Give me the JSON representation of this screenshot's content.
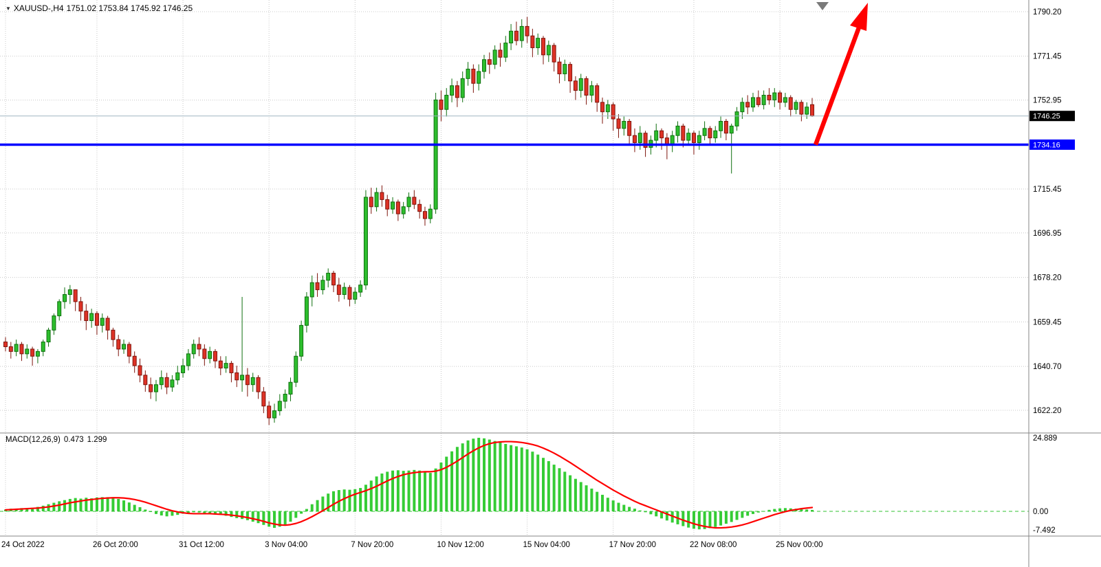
{
  "meta": {
    "bg": "#ffffff",
    "grid_color": "#c8c8c8",
    "separator_color": "#848484",
    "up_fill": "#2DBE2D",
    "up_stroke": "#0E6F0E",
    "down_fill": "#DE3226",
    "down_stroke": "#7E150C",
    "blue_line_color": "#0000FF",
    "arrow_color": "#FF0000",
    "marker_color": "#7A7A7A",
    "hist_color": "#35CC35",
    "zero_line_color": "#30C030",
    "signal_color": "#FF0000",
    "current_price_line_color": "#9FB6C2",
    "current_tag_bg": "#000000",
    "line_tag_bg": "#0000FF"
  },
  "header": {
    "symbol": "XAUUSD-,H4",
    "ohlc": "1751.02 1753.84 1745.92 1746.25"
  },
  "icons": {
    "window_menu": "▼"
  },
  "indicator": {
    "name": "MACD(12,26,9)",
    "value_main": "0.473",
    "value_signal": "1.299"
  },
  "price_axis": {
    "labels": [
      "1790.20",
      "1771.45",
      "1752.95",
      "1715.45",
      "1696.95",
      "1678.20",
      "1659.45",
      "1640.70",
      "1622.20"
    ],
    "current_price": "1746.25",
    "line_price": "1734.16"
  },
  "macd_axis": {
    "labels": [
      "24.889",
      "0.00",
      "-7.492"
    ]
  },
  "time_axis": {
    "labels": [
      {
        "text": "24 Oct 2022",
        "index": 0
      },
      {
        "text": "26 Oct 20:00",
        "index": 17
      },
      {
        "text": "31 Oct 12:00",
        "index": 33
      },
      {
        "text": "3 Nov 04:00",
        "index": 49
      },
      {
        "text": "7 Nov 20:00",
        "index": 65
      },
      {
        "text": "10 Nov 12:00",
        "index": 81
      },
      {
        "text": "15 Nov 04:00",
        "index": 97
      },
      {
        "text": "17 Nov 20:00",
        "index": 113
      },
      {
        "text": "22 Nov 08:00",
        "index": 128
      },
      {
        "text": "25 Nov 00:00",
        "index": 144
      }
    ]
  },
  "chart_data": {
    "type": "candlestick",
    "symbol": "XAUUSD",
    "timeframe": "H4",
    "title": "XAUUSD-,H4",
    "ohlc_readout": {
      "open": 1751.02,
      "high": 1753.84,
      "low": 1745.92,
      "close": 1746.25
    },
    "current_price": 1746.25,
    "horizontal_line_price": 1734.16,
    "price_ticks": [
      1790.2,
      1771.45,
      1752.95,
      1715.45,
      1696.95,
      1678.2,
      1659.45,
      1640.7,
      1622.2
    ],
    "candles": [
      [
        1651,
        1653,
        1647,
        1649
      ],
      [
        1649,
        1651,
        1644,
        1647
      ],
      [
        1647,
        1652,
        1645,
        1650
      ],
      [
        1650,
        1651,
        1643,
        1646
      ],
      [
        1646,
        1650,
        1644,
        1648
      ],
      [
        1648,
        1649,
        1641,
        1645
      ],
      [
        1645,
        1648,
        1642,
        1647
      ],
      [
        1647,
        1652,
        1645,
        1651
      ],
      [
        1651,
        1657,
        1649,
        1656
      ],
      [
        1656,
        1663,
        1654,
        1662
      ],
      [
        1662,
        1669,
        1660,
        1668
      ],
      [
        1668,
        1674,
        1665,
        1671
      ],
      [
        1671,
        1675,
        1667,
        1673
      ],
      [
        1673,
        1673,
        1664,
        1668
      ],
      [
        1668,
        1670,
        1660,
        1664
      ],
      [
        1664,
        1667,
        1656,
        1660
      ],
      [
        1660,
        1665,
        1657,
        1663
      ],
      [
        1663,
        1664,
        1654,
        1658
      ],
      [
        1658,
        1663,
        1655,
        1661
      ],
      [
        1661,
        1662,
        1652,
        1656
      ],
      [
        1656,
        1657,
        1649,
        1652
      ],
      [
        1652,
        1654,
        1645,
        1648
      ],
      [
        1648,
        1652,
        1646,
        1650
      ],
      [
        1650,
        1651,
        1642,
        1645
      ],
      [
        1645,
        1647,
        1638,
        1641
      ],
      [
        1641,
        1644,
        1634,
        1637
      ],
      [
        1637,
        1639,
        1630,
        1633
      ],
      [
        1633,
        1636,
        1627,
        1630
      ],
      [
        1630,
        1635,
        1626,
        1633
      ],
      [
        1633,
        1639,
        1631,
        1636
      ],
      [
        1636,
        1638,
        1629,
        1632
      ],
      [
        1632,
        1637,
        1630,
        1635
      ],
      [
        1635,
        1641,
        1633,
        1638
      ],
      [
        1638,
        1644,
        1636,
        1641
      ],
      [
        1641,
        1648,
        1639,
        1646
      ],
      [
        1646,
        1652,
        1644,
        1650
      ],
      [
        1650,
        1653,
        1645,
        1648
      ],
      [
        1648,
        1650,
        1641,
        1644
      ],
      [
        1644,
        1649,
        1642,
        1647
      ],
      [
        1647,
        1648,
        1640,
        1643
      ],
      [
        1643,
        1645,
        1637,
        1640
      ],
      [
        1640,
        1645,
        1638,
        1642
      ],
      [
        1642,
        1643,
        1634,
        1638
      ],
      [
        1638,
        1641,
        1632,
        1635
      ],
      [
        1635,
        1670,
        1630,
        1637
      ],
      [
        1637,
        1640,
        1628,
        1633
      ],
      [
        1633,
        1638,
        1630,
        1636
      ],
      [
        1636,
        1637,
        1627,
        1630
      ],
      [
        1630,
        1632,
        1621,
        1624
      ],
      [
        1624,
        1626,
        1616,
        1619
      ],
      [
        1619,
        1625,
        1617,
        1622
      ],
      [
        1622,
        1629,
        1620,
        1626
      ],
      [
        1626,
        1631,
        1623,
        1629
      ],
      [
        1629,
        1636,
        1626,
        1634
      ],
      [
        1634,
        1647,
        1632,
        1645
      ],
      [
        1645,
        1660,
        1643,
        1658
      ],
      [
        1658,
        1672,
        1655,
        1670
      ],
      [
        1670,
        1679,
        1666,
        1676
      ],
      [
        1676,
        1680,
        1670,
        1673
      ],
      [
        1673,
        1679,
        1671,
        1677
      ],
      [
        1677,
        1682,
        1674,
        1680
      ],
      [
        1680,
        1681,
        1672,
        1675
      ],
      [
        1675,
        1678,
        1668,
        1671
      ],
      [
        1671,
        1676,
        1669,
        1674
      ],
      [
        1674,
        1675,
        1666,
        1669
      ],
      [
        1669,
        1674,
        1667,
        1672
      ],
      [
        1672,
        1677,
        1670,
        1675
      ],
      [
        1675,
        1715,
        1673,
        1712
      ],
      [
        1712,
        1716,
        1705,
        1708
      ],
      [
        1708,
        1716,
        1706,
        1714
      ],
      [
        1714,
        1717,
        1708,
        1711
      ],
      [
        1711,
        1713,
        1704,
        1707
      ],
      [
        1707,
        1712,
        1705,
        1710
      ],
      [
        1710,
        1711,
        1702,
        1705
      ],
      [
        1705,
        1710,
        1703,
        1708
      ],
      [
        1708,
        1714,
        1706,
        1712
      ],
      [
        1712,
        1715,
        1707,
        1709
      ],
      [
        1709,
        1711,
        1703,
        1706
      ],
      [
        1706,
        1708,
        1700,
        1703
      ],
      [
        1703,
        1709,
        1701,
        1707
      ],
      [
        1707,
        1756,
        1705,
        1753
      ],
      [
        1753,
        1757,
        1744,
        1749
      ],
      [
        1749,
        1758,
        1746,
        1755
      ],
      [
        1755,
        1762,
        1752,
        1759
      ],
      [
        1759,
        1761,
        1750,
        1754
      ],
      [
        1754,
        1765,
        1752,
        1762
      ],
      [
        1762,
        1769,
        1759,
        1766
      ],
      [
        1766,
        1768,
        1756,
        1760
      ],
      [
        1760,
        1768,
        1757,
        1765
      ],
      [
        1765,
        1772,
        1762,
        1770
      ],
      [
        1770,
        1773,
        1764,
        1768
      ],
      [
        1768,
        1776,
        1766,
        1774
      ],
      [
        1774,
        1777,
        1767,
        1771
      ],
      [
        1771,
        1780,
        1769,
        1777
      ],
      [
        1777,
        1785,
        1774,
        1782
      ],
      [
        1782,
        1786,
        1776,
        1778
      ],
      [
        1778,
        1787,
        1775,
        1784
      ],
      [
        1784,
        1788,
        1777,
        1780
      ],
      [
        1780,
        1783,
        1771,
        1775
      ],
      [
        1775,
        1781,
        1772,
        1779
      ],
      [
        1779,
        1780,
        1768,
        1772
      ],
      [
        1772,
        1778,
        1769,
        1776
      ],
      [
        1776,
        1777,
        1765,
        1769
      ],
      [
        1769,
        1771,
        1760,
        1764
      ],
      [
        1764,
        1770,
        1761,
        1768
      ],
      [
        1768,
        1769,
        1756,
        1761
      ],
      [
        1761,
        1763,
        1753,
        1757
      ],
      [
        1757,
        1764,
        1754,
        1762
      ],
      [
        1762,
        1763,
        1751,
        1755
      ],
      [
        1755,
        1761,
        1752,
        1759
      ],
      [
        1759,
        1760,
        1748,
        1752
      ],
      [
        1752,
        1754,
        1743,
        1748
      ],
      [
        1748,
        1753,
        1745,
        1751
      ],
      [
        1751,
        1752,
        1740,
        1745
      ],
      [
        1745,
        1747,
        1737,
        1741
      ],
      [
        1741,
        1746,
        1738,
        1744
      ],
      [
        1744,
        1745,
        1734,
        1738
      ],
      [
        1738,
        1741,
        1731,
        1735
      ],
      [
        1735,
        1742,
        1732,
        1739
      ],
      [
        1739,
        1740,
        1729,
        1733
      ],
      [
        1733,
        1738,
        1730,
        1736
      ],
      [
        1736,
        1743,
        1733,
        1740
      ],
      [
        1740,
        1741,
        1732,
        1737
      ],
      [
        1737,
        1739,
        1728,
        1734
      ],
      [
        1734,
        1740,
        1731,
        1738
      ],
      [
        1738,
        1744,
        1735,
        1742
      ],
      [
        1742,
        1743,
        1733,
        1736
      ],
      [
        1736,
        1741,
        1734,
        1739
      ],
      [
        1739,
        1740,
        1730,
        1735
      ],
      [
        1735,
        1740,
        1732,
        1738
      ],
      [
        1738,
        1744,
        1736,
        1741
      ],
      [
        1741,
        1742,
        1734,
        1737
      ],
      [
        1737,
        1742,
        1735,
        1740
      ],
      [
        1740,
        1746,
        1737,
        1744
      ],
      [
        1744,
        1745,
        1736,
        1739
      ],
      [
        1739,
        1743,
        1722,
        1742
      ],
      [
        1742,
        1750,
        1740,
        1748
      ],
      [
        1748,
        1754,
        1745,
        1752
      ],
      [
        1752,
        1755,
        1747,
        1750
      ],
      [
        1750,
        1756,
        1748,
        1754
      ],
      [
        1754,
        1757,
        1750,
        1751
      ],
      [
        1751,
        1757,
        1749,
        1755
      ],
      [
        1755,
        1758,
        1751,
        1753
      ],
      [
        1753,
        1758,
        1750,
        1756
      ],
      [
        1756,
        1757,
        1749,
        1752
      ],
      [
        1752,
        1756,
        1750,
        1754
      ],
      [
        1754,
        1755,
        1746,
        1749
      ],
      [
        1749,
        1753,
        1747,
        1752
      ],
      [
        1752,
        1753,
        1744,
        1747
      ],
      [
        1747,
        1752,
        1745,
        1750
      ],
      [
        1751.02,
        1753.84,
        1745.92,
        1746.25
      ]
    ],
    "macd": {
      "params": "12,26,9",
      "ticks": [
        24.889,
        0.0,
        -7.492
      ],
      "last_main": 0.473,
      "last_signal": 1.299,
      "histogram": [
        0.6,
        0.9,
        0.7,
        1.1,
        0.8,
        1.2,
        1.5,
        1.9,
        2.4,
        2.9,
        3.4,
        3.8,
        4.2,
        4.5,
        4.3,
        4.6,
        4.4,
        4.7,
        4.8,
        4.8,
        4.6,
        4.2,
        3.7,
        3.0,
        2.2,
        1.4,
        0.6,
        -0.2,
        -0.9,
        -1.4,
        -1.7,
        -1.5,
        -1.2,
        -0.8,
        -0.5,
        -0.3,
        -0.4,
        -0.7,
        -0.6,
        -0.9,
        -1.2,
        -1.5,
        -1.9,
        -2.3,
        -2.6,
        -3.0,
        -3.5,
        -4.0,
        -4.6,
        -5.2,
        -5.6,
        -5.2,
        -4.5,
        -3.5,
        -2.2,
        -0.8,
        0.8,
        2.4,
        3.8,
        5.0,
        6.0,
        6.8,
        7.2,
        7.4,
        7.3,
        7.5,
        7.9,
        9.0,
        10.4,
        11.8,
        12.8,
        13.4,
        13.8,
        13.9,
        13.7,
        13.8,
        14.0,
        13.8,
        13.4,
        13.0,
        14.5,
        16.5,
        18.5,
        20.3,
        21.8,
        23.0,
        24.0,
        24.6,
        24.889,
        24.7,
        24.3,
        23.8,
        23.3,
        22.8,
        22.4,
        22.0,
        21.6,
        21.0,
        20.2,
        19.2,
        18.1,
        17.0,
        15.8,
        14.6,
        13.4,
        12.2,
        11.0,
        9.9,
        8.8,
        7.7,
        6.6,
        5.6,
        4.6,
        3.7,
        2.9,
        2.2,
        1.5,
        0.9,
        0.3,
        -0.3,
        -1.0,
        -1.7,
        -2.4,
        -3.1,
        -3.8,
        -4.4,
        -5.0,
        -5.5,
        -5.9,
        -6.1,
        -6.0,
        -5.7,
        -5.3,
        -4.8,
        -4.2,
        -3.6,
        -2.9,
        -2.2,
        -1.5,
        -0.9,
        -0.4,
        0.1,
        0.5,
        0.8,
        1.0,
        1.1,
        1.0,
        0.9,
        0.7,
        0.6,
        0.473
      ],
      "signal": [
        0.5,
        0.6,
        0.7,
        0.8,
        0.9,
        1.0,
        1.1,
        1.3,
        1.5,
        1.8,
        2.1,
        2.5,
        2.9,
        3.2,
        3.5,
        3.8,
        4.0,
        4.2,
        4.4,
        4.5,
        4.6,
        4.6,
        4.5,
        4.3,
        4.0,
        3.6,
        3.1,
        2.5,
        1.9,
        1.3,
        0.7,
        0.2,
        -0.2,
        -0.5,
        -0.7,
        -0.8,
        -0.8,
        -0.8,
        -0.8,
        -0.9,
        -1.0,
        -1.1,
        -1.3,
        -1.5,
        -1.8,
        -2.1,
        -2.5,
        -2.9,
        -3.4,
        -3.9,
        -4.3,
        -4.6,
        -4.7,
        -4.5,
        -4.1,
        -3.5,
        -2.7,
        -1.8,
        -0.8,
        0.2,
        1.3,
        2.4,
        3.4,
        4.3,
        5.1,
        5.8,
        6.4,
        7.0,
        7.7,
        8.5,
        9.4,
        10.3,
        11.1,
        11.8,
        12.4,
        12.8,
        13.1,
        13.3,
        13.4,
        13.4,
        13.6,
        14.1,
        14.9,
        15.9,
        17.0,
        18.2,
        19.4,
        20.5,
        21.5,
        22.3,
        22.9,
        23.3,
        23.5,
        23.6,
        23.6,
        23.5,
        23.3,
        23.0,
        22.6,
        22.1,
        21.4,
        20.6,
        19.7,
        18.7,
        17.6,
        16.5,
        15.3,
        14.1,
        12.9,
        11.7,
        10.5,
        9.4,
        8.3,
        7.2,
        6.2,
        5.2,
        4.3,
        3.4,
        2.6,
        1.9,
        1.2,
        0.5,
        -0.2,
        -0.9,
        -1.6,
        -2.3,
        -3.0,
        -3.6,
        -4.2,
        -4.7,
        -5.1,
        -5.4,
        -5.6,
        -5.6,
        -5.5,
        -5.3,
        -5.0,
        -4.6,
        -4.1,
        -3.5,
        -2.9,
        -2.3,
        -1.7,
        -1.1,
        -0.6,
        -0.1,
        0.3,
        0.6,
        0.9,
        1.1,
        1.299
      ]
    },
    "annotations": [
      {
        "type": "trend-arrow",
        "direction": "up",
        "color": "#FF0000",
        "anchored_at_price": 1734.16
      },
      {
        "type": "triangle-marker",
        "direction": "down",
        "color": "#7A7A7A",
        "position": "top"
      }
    ]
  }
}
